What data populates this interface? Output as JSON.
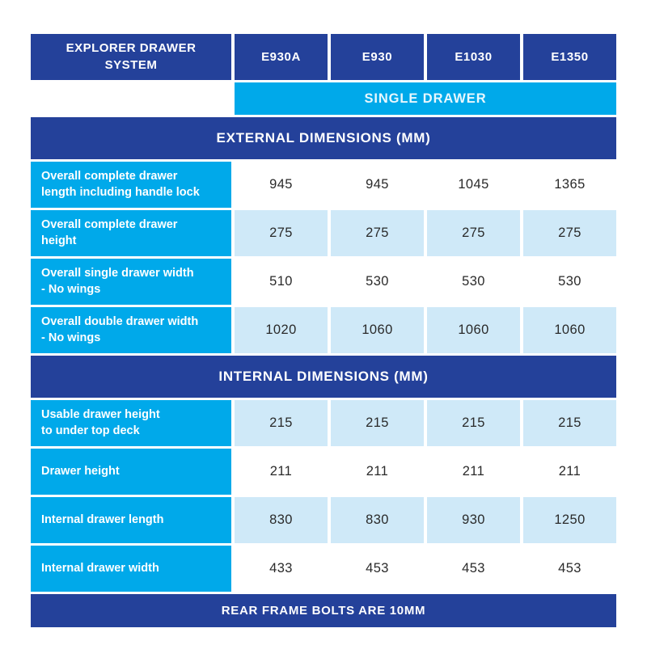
{
  "colors": {
    "navy": "#24419a",
    "cyan": "#00a9ea",
    "light_blue": "#cfe9f8",
    "value_text": "#2a2a2a"
  },
  "chart_data": {
    "type": "table",
    "title": "EXPLORER DRAWER\nSYSTEM",
    "columns": [
      "E930A",
      "E930",
      "E1030",
      "E1350"
    ],
    "column_group_label": "SINGLE DRAWER",
    "sections": [
      {
        "title": "EXTERNAL DIMENSIONS (MM)",
        "rows": [
          {
            "label": "Overall complete drawer\nlength including handle lock",
            "values": [
              945,
              945,
              1045,
              1365
            ]
          },
          {
            "label": "Overall complete drawer\nheight",
            "values": [
              275,
              275,
              275,
              275
            ]
          },
          {
            "label": "Overall single drawer width\n- No wings",
            "values": [
              510,
              530,
              530,
              530
            ]
          },
          {
            "label": "Overall double drawer width\n- No wings",
            "values": [
              1020,
              1060,
              1060,
              1060
            ]
          }
        ]
      },
      {
        "title": "INTERNAL DIMENSIONS (MM)",
        "rows": [
          {
            "label": "Usable drawer height\nto under top deck",
            "values": [
              215,
              215,
              215,
              215
            ]
          },
          {
            "label": "Drawer height",
            "values": [
              211,
              211,
              211,
              211
            ]
          },
          {
            "label": "Internal drawer length",
            "values": [
              830,
              830,
              930,
              1250
            ]
          },
          {
            "label": "Internal drawer width",
            "values": [
              433,
              453,
              453,
              453
            ]
          }
        ]
      }
    ],
    "footer": "REAR FRAME BOLTS ARE 10MM"
  }
}
